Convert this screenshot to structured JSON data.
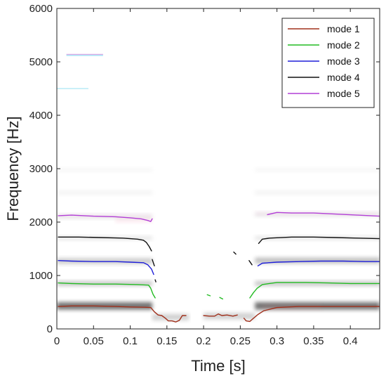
{
  "chart_data": {
    "type": "line",
    "title": "",
    "xlabel": "Time [s]",
    "ylabel": "Frequency [Hz]",
    "xlim": [
      0,
      0.44
    ],
    "ylim": [
      0,
      6000
    ],
    "x_ticks": [
      0,
      0.05,
      0.1,
      0.15,
      0.2,
      0.25,
      0.3,
      0.35,
      0.4
    ],
    "x_tick_labels": [
      "0",
      "0.05",
      "0.1",
      "0.15",
      "0.2",
      "0.25",
      "0.3",
      "0.35",
      "0.4"
    ],
    "y_ticks": [
      0,
      1000,
      2000,
      3000,
      4000,
      5000,
      6000
    ],
    "y_tick_labels": [
      "0",
      "1000",
      "2000",
      "3000",
      "4000",
      "5000",
      "6000"
    ],
    "grid": false,
    "legend_position": "top-right",
    "background": "grayscale spectrogram",
    "series": [
      {
        "name": "mode 1",
        "color": "#a0301c",
        "segments": [
          [
            [
              0.002,
              420
            ],
            [
              0.02,
              430
            ],
            [
              0.05,
              430
            ],
            [
              0.08,
              420
            ],
            [
              0.1,
              410
            ],
            [
              0.12,
              405
            ],
            [
              0.128,
              400
            ],
            [
              0.133,
              320
            ],
            [
              0.138,
              260
            ],
            [
              0.143,
              250
            ],
            [
              0.148,
              200
            ],
            [
              0.152,
              150
            ],
            [
              0.157,
              150
            ],
            [
              0.162,
              130
            ],
            [
              0.167,
              160
            ],
            [
              0.171,
              250
            ],
            [
              0.176,
              250
            ]
          ],
          [
            [
              0.2,
              250
            ],
            [
              0.208,
              240
            ],
            [
              0.215,
              240
            ],
            [
              0.22,
              280
            ],
            [
              0.225,
              250
            ],
            [
              0.232,
              260
            ],
            [
              0.24,
              240
            ],
            [
              0.246,
              260
            ]
          ],
          [
            [
              0.255,
              200
            ],
            [
              0.258,
              150
            ],
            [
              0.263,
              140
            ],
            [
              0.268,
              200
            ],
            [
              0.274,
              270
            ],
            [
              0.282,
              340
            ],
            [
              0.3,
              400
            ],
            [
              0.33,
              420
            ],
            [
              0.36,
              420
            ],
            [
              0.4,
              420
            ],
            [
              0.44,
              420
            ]
          ]
        ]
      },
      {
        "name": "mode 2",
        "color": "#22bb22",
        "segments": [
          [
            [
              0.002,
              860
            ],
            [
              0.02,
              850
            ],
            [
              0.05,
              840
            ],
            [
              0.08,
              840
            ],
            [
              0.11,
              830
            ],
            [
              0.125,
              820
            ],
            [
              0.128,
              760
            ],
            [
              0.131,
              650
            ],
            [
              0.134,
              580
            ]
          ],
          [
            [
              0.205,
              640
            ],
            [
              0.209,
              620
            ]
          ],
          [
            [
              0.222,
              590
            ],
            [
              0.226,
              560
            ]
          ],
          [
            [
              0.263,
              580
            ],
            [
              0.268,
              680
            ],
            [
              0.273,
              760
            ],
            [
              0.28,
              830
            ],
            [
              0.3,
              870
            ],
            [
              0.34,
              870
            ],
            [
              0.37,
              860
            ],
            [
              0.4,
              850
            ],
            [
              0.44,
              850
            ]
          ]
        ]
      },
      {
        "name": "mode 3",
        "color": "#1e1ed8",
        "segments": [
          [
            [
              0.002,
              1280
            ],
            [
              0.02,
              1270
            ],
            [
              0.05,
              1260
            ],
            [
              0.08,
              1260
            ],
            [
              0.1,
              1250
            ],
            [
              0.118,
              1240
            ],
            [
              0.124,
              1200
            ],
            [
              0.129,
              1120
            ],
            [
              0.132,
              1020
            ]
          ],
          [
            [
              0.274,
              1180
            ],
            [
              0.28,
              1230
            ],
            [
              0.3,
              1250
            ],
            [
              0.33,
              1260
            ],
            [
              0.36,
              1270
            ],
            [
              0.39,
              1270
            ],
            [
              0.42,
              1260
            ],
            [
              0.44,
              1260
            ]
          ]
        ]
      },
      {
        "name": "mode 4",
        "color": "#111111",
        "segments": [
          [
            [
              0.002,
              1720
            ],
            [
              0.03,
              1720
            ],
            [
              0.06,
              1710
            ],
            [
              0.09,
              1700
            ],
            [
              0.11,
              1680
            ],
            [
              0.118,
              1660
            ],
            [
              0.122,
              1620
            ],
            [
              0.126,
              1540
            ],
            [
              0.129,
              1460
            ]
          ],
          [
            [
              0.13,
              1300
            ],
            [
              0.133,
              1180
            ]
          ],
          [
            [
              0.134,
              920
            ],
            [
              0.135,
              880
            ]
          ],
          [
            [
              0.241,
              1440
            ],
            [
              0.244,
              1400
            ]
          ],
          [
            [
              0.262,
              1280
            ],
            [
              0.266,
              1200
            ]
          ],
          [
            [
              0.275,
              1600
            ],
            [
              0.28,
              1680
            ],
            [
              0.29,
              1700
            ],
            [
              0.32,
              1720
            ],
            [
              0.35,
              1720
            ],
            [
              0.38,
              1710
            ],
            [
              0.41,
              1700
            ],
            [
              0.44,
              1690
            ]
          ]
        ]
      },
      {
        "name": "mode 5",
        "color": "#b23fd6",
        "segments": [
          [
            [
              0.002,
              2120
            ],
            [
              0.02,
              2130
            ],
            [
              0.05,
              2110
            ],
            [
              0.08,
              2100
            ],
            [
              0.1,
              2080
            ],
            [
              0.115,
              2060
            ],
            [
              0.124,
              2030
            ],
            [
              0.128,
              2010
            ],
            [
              0.13,
              2060
            ]
          ],
          [
            [
              0.287,
              2140
            ],
            [
              0.3,
              2180
            ],
            [
              0.32,
              2170
            ],
            [
              0.35,
              2170
            ],
            [
              0.38,
              2150
            ],
            [
              0.41,
              2130
            ],
            [
              0.44,
              2110
            ]
          ]
        ]
      }
    ]
  }
}
